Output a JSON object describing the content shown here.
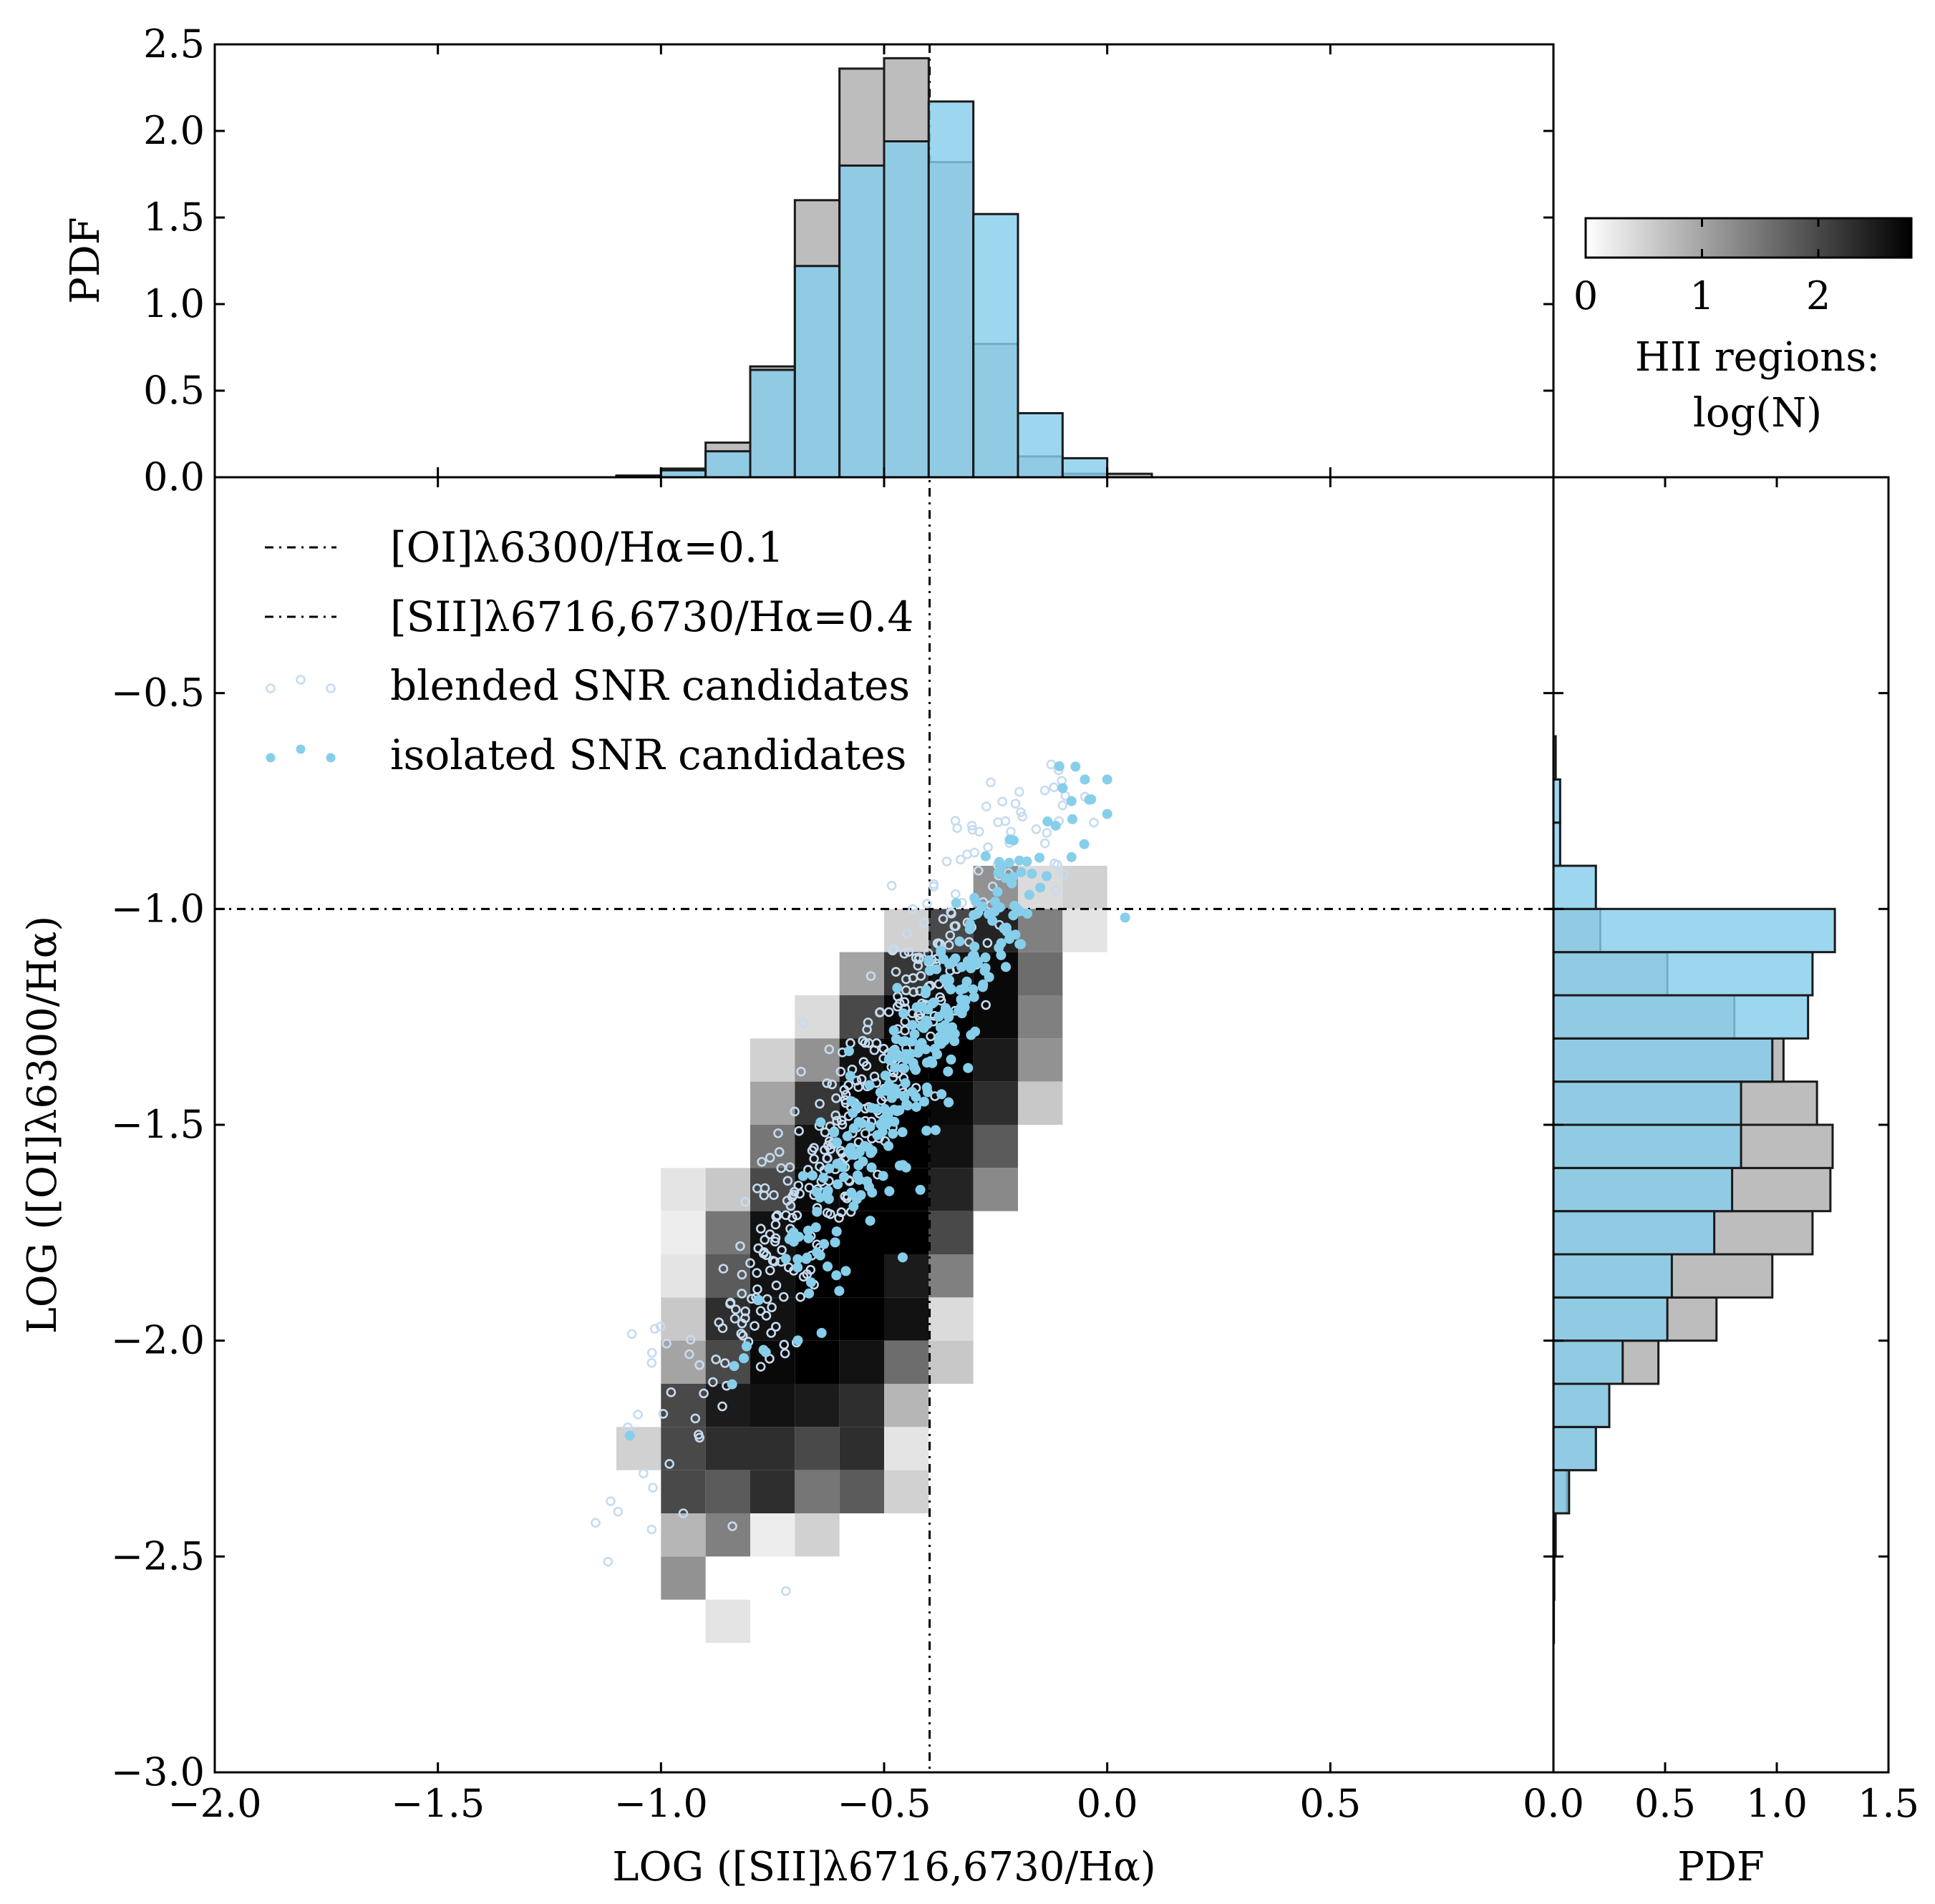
{
  "chart_data": {
    "type": "scatter",
    "title": "",
    "xlabel": "LOG ([SII]λ6716,6730/Hα)",
    "ylabel": "LOG ([OI]λ6300/Hα)",
    "xlim": [
      -2.0,
      1.0
    ],
    "ylim": [
      -3.0,
      0.0
    ],
    "xticks": [
      "−2.0",
      "−1.5",
      "−1.0",
      "−0.5",
      "0.0",
      "0.5"
    ],
    "yticks": [
      "−3.0",
      "−2.5",
      "−2.0",
      "−1.5",
      "−1.0",
      "−0.5"
    ],
    "reference_lines": [
      {
        "orientation": "horizontal",
        "value": -1.0,
        "label": "[OI]λ6300/Hα=0.1",
        "style": "dash-dot"
      },
      {
        "orientation": "vertical",
        "value": -0.398,
        "label": "[SII]λ6716,6730/Hα=0.4",
        "style": "dash-dot"
      }
    ],
    "legend": {
      "placement": "top-left",
      "entries": [
        {
          "label": "[OI]λ6300/Hα=0.1",
          "marker": "dashdot-line"
        },
        {
          "label": "[SII]λ6716,6730/Hα=0.4",
          "marker": "dashdot-line"
        },
        {
          "label": "blended SNR candidates",
          "marker": "open-circle"
        },
        {
          "label": "isolated SNR candidates",
          "marker": "filled-circle"
        }
      ]
    },
    "hii_density": {
      "description": "2D histogram of HII regions, shaded by log(N)",
      "bin_size": 0.1,
      "cells": [
        [
          -0.2,
          -1.0,
          0.4
        ],
        [
          -0.1,
          -1.0,
          0.5
        ],
        [
          -0.3,
          -1.0,
          1.2
        ],
        [
          -0.2,
          -1.1,
          1.4
        ],
        [
          -0.1,
          -1.1,
          0.3
        ],
        [
          -0.5,
          -1.1,
          0.5
        ],
        [
          -0.4,
          -1.1,
          2.0
        ],
        [
          -0.3,
          -1.1,
          2.4
        ],
        [
          -0.6,
          -1.2,
          1.0
        ],
        [
          -0.5,
          -1.2,
          2.2
        ],
        [
          -0.4,
          -1.2,
          2.6
        ],
        [
          -0.3,
          -1.2,
          2.7
        ],
        [
          -0.2,
          -1.2,
          1.6
        ],
        [
          -0.7,
          -1.3,
          0.4
        ],
        [
          -0.6,
          -1.3,
          2.0
        ],
        [
          -0.5,
          -1.3,
          2.7
        ],
        [
          -0.4,
          -1.3,
          2.8
        ],
        [
          -0.3,
          -1.3,
          2.7
        ],
        [
          -0.2,
          -1.3,
          1.4
        ],
        [
          -0.8,
          -1.4,
          0.5
        ],
        [
          -0.7,
          -1.4,
          1.2
        ],
        [
          -0.6,
          -1.4,
          2.6
        ],
        [
          -0.5,
          -1.4,
          2.8
        ],
        [
          -0.4,
          -1.4,
          2.8
        ],
        [
          -0.3,
          -1.4,
          2.5
        ],
        [
          -0.2,
          -1.4,
          1.2
        ],
        [
          -0.8,
          -1.5,
          1.0
        ],
        [
          -0.7,
          -1.5,
          2.2
        ],
        [
          -0.6,
          -1.5,
          2.8
        ],
        [
          -0.5,
          -1.5,
          2.8
        ],
        [
          -0.4,
          -1.5,
          2.7
        ],
        [
          -0.3,
          -1.5,
          2.3
        ],
        [
          -0.2,
          -1.5,
          0.6
        ],
        [
          -0.8,
          -1.6,
          1.5
        ],
        [
          -0.7,
          -1.6,
          2.6
        ],
        [
          -0.6,
          -1.6,
          2.8
        ],
        [
          -0.5,
          -1.6,
          2.8
        ],
        [
          -0.4,
          -1.6,
          2.6
        ],
        [
          -0.3,
          -1.6,
          1.8
        ],
        [
          -1.0,
          -1.7,
          0.3
        ],
        [
          -0.9,
          -1.7,
          0.6
        ],
        [
          -0.8,
          -1.7,
          2.0
        ],
        [
          -0.7,
          -1.7,
          2.7
        ],
        [
          -0.6,
          -1.7,
          2.8
        ],
        [
          -0.5,
          -1.7,
          2.8
        ],
        [
          -0.4,
          -1.7,
          2.4
        ],
        [
          -0.3,
          -1.7,
          1.3
        ],
        [
          -1.0,
          -1.8,
          0.2
        ],
        [
          -0.9,
          -1.8,
          1.5
        ],
        [
          -0.8,
          -1.8,
          2.6
        ],
        [
          -0.7,
          -1.8,
          2.8
        ],
        [
          -0.6,
          -1.8,
          2.8
        ],
        [
          -0.5,
          -1.8,
          2.8
        ],
        [
          -0.4,
          -1.8,
          2.0
        ],
        [
          -1.0,
          -1.9,
          0.3
        ],
        [
          -0.9,
          -1.9,
          1.8
        ],
        [
          -0.8,
          -1.9,
          2.6
        ],
        [
          -0.7,
          -1.9,
          2.8
        ],
        [
          -0.6,
          -1.9,
          2.8
        ],
        [
          -0.5,
          -1.9,
          2.5
        ],
        [
          -0.4,
          -1.9,
          1.4
        ],
        [
          -1.0,
          -2.0,
          0.6
        ],
        [
          -0.9,
          -2.0,
          2.3
        ],
        [
          -0.8,
          -2.0,
          2.6
        ],
        [
          -0.7,
          -2.0,
          2.8
        ],
        [
          -0.6,
          -2.0,
          2.8
        ],
        [
          -0.5,
          -2.0,
          2.6
        ],
        [
          -0.4,
          -2.0,
          0.4
        ],
        [
          -1.0,
          -2.1,
          1.0
        ],
        [
          -0.9,
          -2.1,
          2.0
        ],
        [
          -0.8,
          -2.1,
          2.7
        ],
        [
          -0.7,
          -2.1,
          2.8
        ],
        [
          -0.6,
          -2.1,
          2.6
        ],
        [
          -0.5,
          -2.1,
          1.6
        ],
        [
          -0.4,
          -2.1,
          0.6
        ],
        [
          -1.0,
          -2.2,
          2.0
        ],
        [
          -0.9,
          -2.2,
          2.5
        ],
        [
          -0.8,
          -2.2,
          2.6
        ],
        [
          -0.7,
          -2.2,
          2.5
        ],
        [
          -0.6,
          -2.2,
          2.3
        ],
        [
          -0.5,
          -2.2,
          0.8
        ],
        [
          -1.1,
          -2.3,
          0.5
        ],
        [
          -1.0,
          -2.3,
          2.0
        ],
        [
          -0.9,
          -2.3,
          2.3
        ],
        [
          -0.8,
          -2.3,
          2.3
        ],
        [
          -0.7,
          -2.3,
          2.0
        ],
        [
          -0.6,
          -2.3,
          2.3
        ],
        [
          -0.5,
          -2.3,
          0.3
        ],
        [
          -1.0,
          -2.4,
          2.0
        ],
        [
          -0.9,
          -2.4,
          1.8
        ],
        [
          -0.8,
          -2.4,
          2.3
        ],
        [
          -0.7,
          -2.4,
          1.5
        ],
        [
          -0.6,
          -2.4,
          1.8
        ],
        [
          -0.5,
          -2.4,
          0.5
        ],
        [
          -1.0,
          -2.5,
          0.8
        ],
        [
          -0.9,
          -2.5,
          1.4
        ],
        [
          -0.8,
          -2.5,
          0.2
        ],
        [
          -0.7,
          -2.5,
          0.5
        ],
        [
          -1.0,
          -2.6,
          1.2
        ],
        [
          -0.9,
          -2.7,
          0.3
        ]
      ]
    },
    "top_histogram": {
      "axis": "x",
      "ylabel": "PDF",
      "ylim": [
        0.0,
        2.5
      ],
      "yticks": [
        "0.0",
        "0.5",
        "1.0",
        "1.5",
        "2.0",
        "2.5"
      ],
      "bins_left": [
        -1.1,
        -1.0,
        -0.9,
        -0.8,
        -0.7,
        -0.6,
        -0.5,
        -0.4,
        -0.3,
        -0.2,
        -0.1,
        0.0
      ],
      "bin_width": 0.1,
      "series": [
        {
          "name": "HII regions",
          "color": "#bdbdbd",
          "values": [
            0.01,
            0.05,
            0.2,
            0.64,
            1.6,
            2.36,
            2.42,
            1.82,
            0.77,
            0.12,
            0.02,
            0.02
          ]
        },
        {
          "name": "SNR candidates",
          "color": "#87ceeb",
          "values": [
            0.0,
            0.04,
            0.15,
            0.62,
            1.22,
            1.8,
            1.94,
            2.17,
            1.52,
            0.37,
            0.11,
            0.0
          ]
        }
      ]
    },
    "right_histogram": {
      "axis": "y",
      "xlabel": "PDF",
      "xlim": [
        0.0,
        1.5
      ],
      "xticks": [
        "0.0",
        "0.5",
        "1.0",
        "1.5"
      ],
      "bins_bottom": [
        -2.7,
        -2.6,
        -2.5,
        -2.4,
        -2.3,
        -2.2,
        -2.1,
        -2.0,
        -1.9,
        -1.8,
        -1.7,
        -1.6,
        -1.5,
        -1.4,
        -1.3,
        -1.2,
        -1.1,
        -1.0,
        -0.9,
        -0.8,
        -0.7
      ],
      "bin_width": 0.1,
      "series": [
        {
          "name": "HII regions",
          "color": "#bdbdbd",
          "values": [
            0.002,
            0.004,
            0.01,
            0.06,
            0.19,
            0.25,
            0.47,
            0.73,
            0.98,
            1.16,
            1.24,
            1.25,
            1.18,
            1.03,
            0.81,
            0.51,
            0.21,
            0.0,
            0.0,
            0.0,
            0.0
          ]
        },
        {
          "name": "SNR candidates",
          "color": "#87ceeb",
          "values": [
            0.0,
            0.0,
            0.002,
            0.07,
            0.19,
            0.25,
            0.31,
            0.51,
            0.53,
            0.72,
            0.8,
            0.84,
            0.84,
            0.98,
            1.14,
            1.16,
            1.26,
            0.19,
            0.03,
            0.03,
            0.01
          ]
        }
      ]
    },
    "colorbar": {
      "label_line1": "HII regions:",
      "label_line2": "log(N)",
      "range": [
        0,
        2.8
      ],
      "ticks": [
        "0",
        "1",
        "2"
      ],
      "colormap": "white-to-black"
    }
  },
  "colors": {
    "snr": "#87ceeb",
    "snr_blended_edge": "#c6dbef",
    "hii_hist": "#bdbdbd",
    "axes": "#000000"
  }
}
